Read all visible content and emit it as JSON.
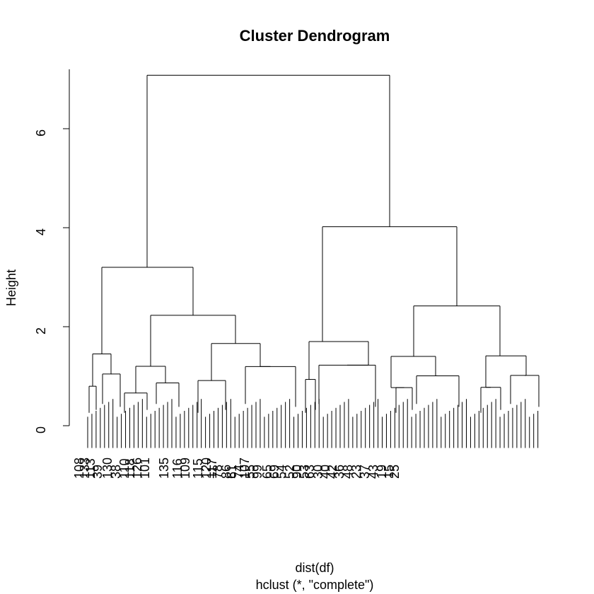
{
  "chart_data": {
    "type": "dendrogram",
    "title": "Cluster Dendrogram",
    "ylabel": "Height",
    "xlabel": "dist(df)",
    "subtitle": "hclust (*, \"complete\")",
    "ylim": [
      0,
      7.2
    ],
    "yticks": [
      0,
      2,
      4,
      6
    ],
    "root_height": 7.08,
    "top_split": {
      "left": {
        "height": 3.2
      },
      "right": {
        "height": 4.02
      }
    },
    "second_level": [
      {
        "height": 2.23
      },
      {
        "height": 2.42
      }
    ],
    "leaf_labels": [
      "108",
      "133",
      "113",
      "39",
      "130",
      "38",
      "110",
      "118",
      "126",
      "101",
      "135",
      "116",
      "109",
      "115",
      "120",
      "117",
      "78",
      "86",
      "61",
      "74",
      "107",
      "55",
      "99",
      "65",
      "69",
      "54",
      "52",
      "90",
      "53",
      "63",
      "30",
      "40",
      "42",
      "36",
      "48",
      "23",
      "37",
      "43",
      "19",
      "15",
      "25"
    ]
  }
}
